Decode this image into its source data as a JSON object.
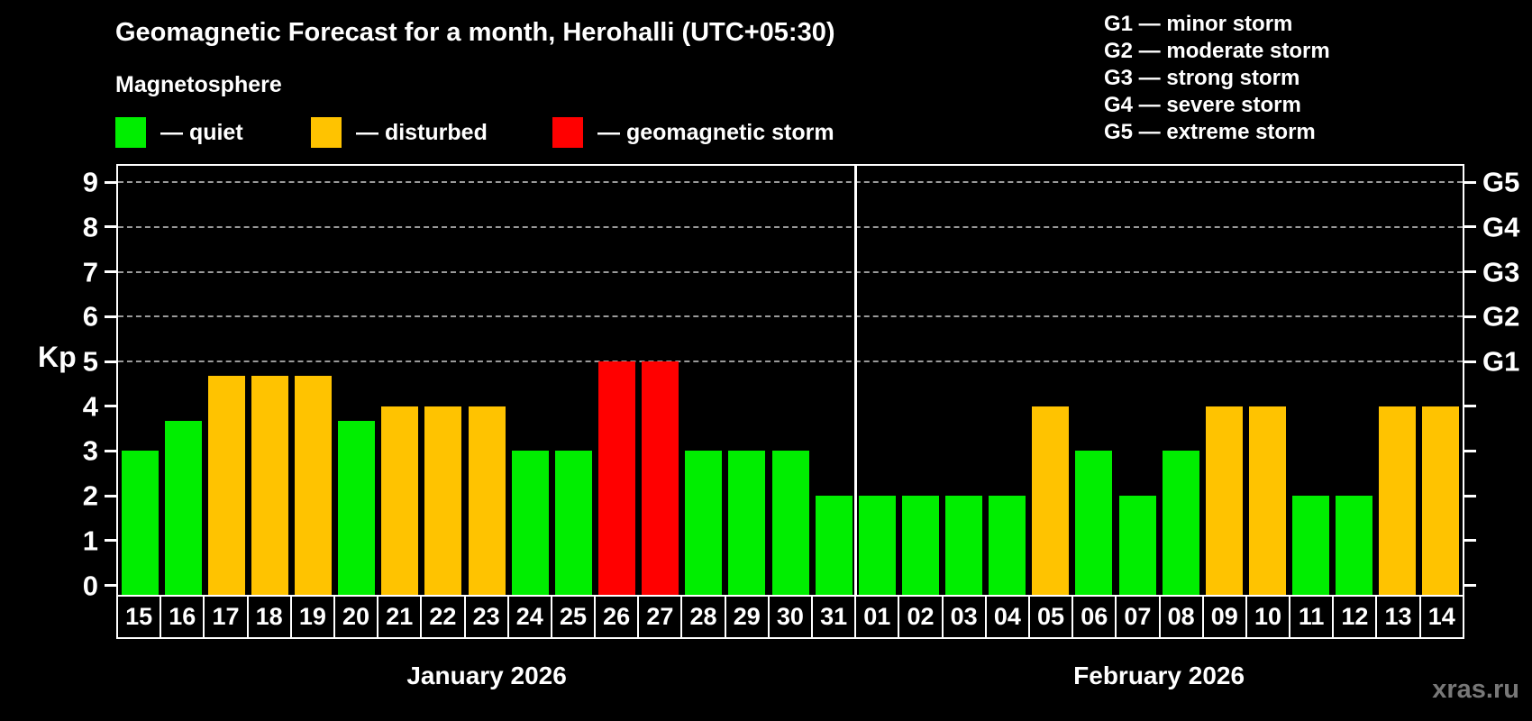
{
  "header": {
    "title": "Geomagnetic Forecast for a month, Herohalli (UTC+05:30)"
  },
  "legend": {
    "subtitle": "Magnetosphere",
    "items": [
      {
        "key": "quiet",
        "label": "— quiet",
        "color": "#00ee00"
      },
      {
        "key": "disturbed",
        "label": "— disturbed",
        "color": "#ffc300"
      },
      {
        "key": "storm",
        "label": "— geomagnetic storm",
        "color": "#ff0000"
      }
    ]
  },
  "g_legend": [
    "G1 — minor storm",
    "G2 — moderate storm",
    "G3 — strong storm",
    "G4 — severe storm",
    "G5 — extreme storm"
  ],
  "watermark": "xras.ru",
  "chart_data": {
    "type": "bar",
    "title": "Geomagnetic Forecast for a month, Herohalli (UTC+05:30)",
    "xlabel": "",
    "ylabel": "Kp",
    "ylim": [
      0,
      9.4
    ],
    "yticks": [
      0,
      1,
      2,
      3,
      4,
      5,
      6,
      7,
      8,
      9
    ],
    "gridlines_at": [
      5,
      6,
      7,
      8,
      9
    ],
    "grid": "dashed horizontal lines at Kp 5-9 only",
    "legend_position": "top-left",
    "right_axis": {
      "labels": [
        {
          "kp": 5,
          "label": "G1"
        },
        {
          "kp": 6,
          "label": "G2"
        },
        {
          "kp": 7,
          "label": "G3"
        },
        {
          "kp": 8,
          "label": "G4"
        },
        {
          "kp": 9,
          "label": "G5"
        }
      ]
    },
    "months": [
      {
        "label": "January 2026",
        "days": 17
      },
      {
        "label": "February 2026",
        "days": 14
      }
    ],
    "categories": [
      "15",
      "16",
      "17",
      "18",
      "19",
      "20",
      "21",
      "22",
      "23",
      "24",
      "25",
      "26",
      "27",
      "28",
      "29",
      "30",
      "31",
      "01",
      "02",
      "03",
      "04",
      "05",
      "06",
      "07",
      "08",
      "09",
      "10",
      "11",
      "12",
      "13",
      "14"
    ],
    "values": [
      3,
      3.67,
      4.67,
      4.67,
      4.67,
      3.67,
      4,
      4,
      4,
      3,
      3,
      5,
      5,
      3,
      3,
      3,
      2,
      2,
      2,
      2,
      2,
      4,
      3,
      2,
      3,
      4,
      4,
      2,
      2,
      4,
      4
    ],
    "statuses": [
      "quiet",
      "quiet",
      "disturbed",
      "disturbed",
      "disturbed",
      "quiet",
      "disturbed",
      "disturbed",
      "disturbed",
      "quiet",
      "quiet",
      "storm",
      "storm",
      "quiet",
      "quiet",
      "quiet",
      "quiet",
      "quiet",
      "quiet",
      "quiet",
      "quiet",
      "disturbed",
      "quiet",
      "quiet",
      "quiet",
      "disturbed",
      "disturbed",
      "quiet",
      "quiet",
      "disturbed",
      "disturbed"
    ],
    "colors": {
      "quiet": "#00ee00",
      "disturbed": "#ffc300",
      "storm": "#ff0000"
    }
  }
}
